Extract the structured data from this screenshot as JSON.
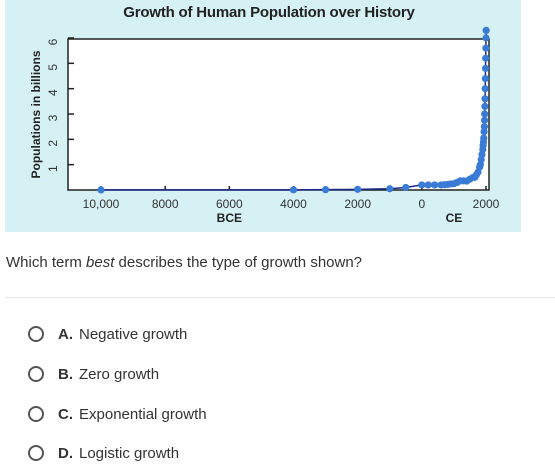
{
  "chart_data": {
    "type": "line",
    "title": "Growth of Human Population over History",
    "ylabel": "Populations in billions",
    "x_tick_labels": [
      "10,000",
      "8000",
      "6000",
      "4000",
      "2000",
      "0",
      "2000"
    ],
    "x_tick_values": [
      -10000,
      -8000,
      -6000,
      -4000,
      -2000,
      0,
      2000
    ],
    "x_era_labels": [
      {
        "text": "BCE",
        "x": -6000
      },
      {
        "text": "CE",
        "x": 1000
      }
    ],
    "y_tick_labels": [
      "1",
      "2",
      "3",
      "4",
      "5",
      "6"
    ],
    "y_tick_values": [
      1,
      2,
      3,
      4,
      5,
      6
    ],
    "xlim": [
      -10000,
      2000
    ],
    "ylim": [
      0,
      6
    ],
    "line_color": "#1b2a8a",
    "point_color": "#3a7bd5",
    "series": [
      {
        "x": [
          -10000,
          -4000,
          -3000,
          -2000,
          -1000,
          -500,
          0,
          200,
          400,
          600,
          700,
          800,
          900,
          1000,
          1100,
          1200,
          1300,
          1400,
          1500,
          1600,
          1650,
          1700,
          1750,
          1800,
          1825,
          1850,
          1875,
          1900,
          1910,
          1920,
          1930,
          1940,
          1950,
          1955,
          1960,
          1965,
          1970,
          1975,
          1980,
          1985,
          1990,
          1995,
          2000,
          2005
        ],
        "y": [
          0.004,
          0.007,
          0.014,
          0.027,
          0.05,
          0.1,
          0.2,
          0.2,
          0.2,
          0.2,
          0.21,
          0.22,
          0.24,
          0.25,
          0.3,
          0.36,
          0.36,
          0.35,
          0.43,
          0.5,
          0.5,
          0.6,
          0.7,
          0.9,
          1.0,
          1.2,
          1.4,
          1.6,
          1.75,
          1.9,
          2.05,
          2.3,
          2.5,
          2.75,
          3.0,
          3.3,
          3.6,
          4.0,
          4.4,
          4.8,
          5.2,
          5.6,
          6.0,
          6.3
        ]
      }
    ]
  },
  "question": {
    "prefix": "Which term ",
    "emphasis": "best",
    "suffix": " describes the type of growth shown?"
  },
  "options": [
    {
      "letter": "A.",
      "text": "Negative growth"
    },
    {
      "letter": "B.",
      "text": "Zero growth"
    },
    {
      "letter": "C.",
      "text": "Exponential growth"
    },
    {
      "letter": "D.",
      "text": "Logistic growth"
    }
  ]
}
